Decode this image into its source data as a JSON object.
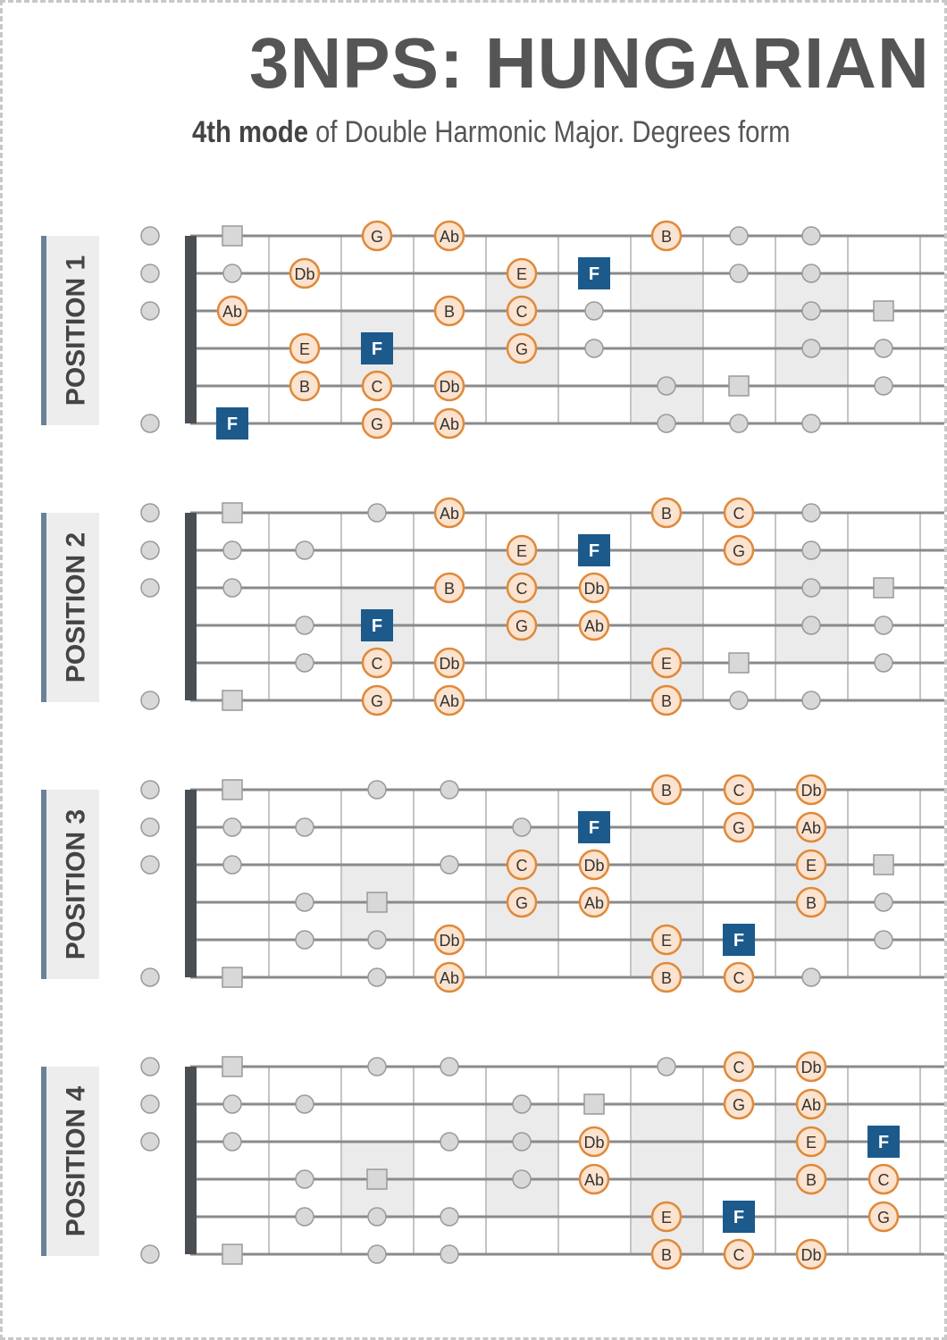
{
  "header": {
    "title": "3NPS: HUNGARIAN",
    "subtitle_bold": "4th mode",
    "subtitle": "of Double Harmonic Major. Degrees form"
  },
  "positions": [
    {
      "label": "POSITION 1",
      "notes": [
        "G",
        "Ab",
        "B",
        "Db",
        "E",
        "F",
        "Ab",
        "B",
        "C",
        "E",
        "F",
        "G",
        "B",
        "C",
        "Db",
        "F",
        "G",
        "Ab"
      ]
    },
    {
      "label": "POSITION 2",
      "notes": [
        "Ab",
        "B",
        "C",
        "E",
        "F",
        "G",
        "B",
        "C",
        "Db",
        "F",
        "G",
        "Ab",
        "C",
        "Db",
        "E",
        "G",
        "Ab",
        "B"
      ]
    },
    {
      "label": "POSITION 3",
      "notes": [
        "B",
        "C",
        "Db",
        "F",
        "G",
        "Ab",
        "C",
        "Db",
        "E",
        "G",
        "Ab",
        "B",
        "Db",
        "E",
        "F",
        "Ab",
        "B",
        "C"
      ]
    },
    {
      "label": "POSITION 4",
      "notes": [
        "C",
        "Db",
        "G",
        "Ab",
        "Db",
        "E",
        "F",
        "Ab",
        "B",
        "C",
        "E",
        "F",
        "G",
        "B",
        "C",
        "Db"
      ]
    }
  ]
}
